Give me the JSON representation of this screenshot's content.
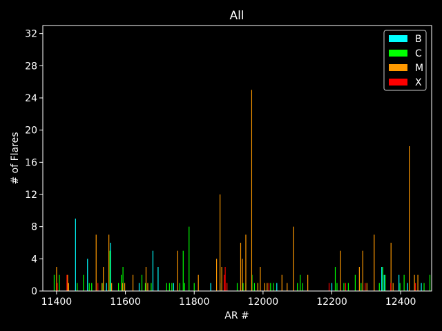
{
  "chart_data": {
    "type": "bar",
    "title": "All",
    "xlabel": "AR #",
    "ylabel": "# of Flares",
    "xlim": [
      11360,
      12490
    ],
    "ylim": [
      0,
      33
    ],
    "xticks": [
      11400,
      11600,
      11800,
      12000,
      12200,
      12400
    ],
    "yticks": [
      0,
      4,
      8,
      12,
      16,
      20,
      24,
      28,
      32
    ],
    "legend_position": "top-right",
    "series": [
      {
        "name": "B",
        "color": "#00ffff",
        "points": [
          [
            11455,
            9
          ],
          [
            11490,
            4
          ],
          [
            11545,
            1
          ],
          [
            11557,
            6
          ],
          [
            11640,
            1
          ],
          [
            11680,
            5
          ],
          [
            11695,
            3
          ],
          [
            11740,
            1
          ],
          [
            11848,
            1
          ],
          [
            11875,
            1
          ],
          [
            12040,
            1
          ],
          [
            12200,
            1
          ],
          [
            12345,
            3
          ],
          [
            12352,
            2
          ],
          [
            12395,
            2
          ],
          [
            12420,
            1
          ],
          [
            12460,
            1
          ]
        ]
      },
      {
        "name": "C",
        "color": "#00ff00",
        "points": [
          [
            11393,
            2
          ],
          [
            11408,
            2
          ],
          [
            11460,
            1
          ],
          [
            11478,
            2
          ],
          [
            11495,
            1
          ],
          [
            11502,
            1
          ],
          [
            11535,
            1
          ],
          [
            11555,
            5
          ],
          [
            11580,
            1
          ],
          [
            11588,
            2
          ],
          [
            11593,
            3
          ],
          [
            11648,
            2
          ],
          [
            11658,
            1
          ],
          [
            11675,
            1
          ],
          [
            11720,
            1
          ],
          [
            11728,
            1
          ],
          [
            11735,
            1
          ],
          [
            11758,
            1
          ],
          [
            11768,
            5
          ],
          [
            11772,
            1
          ],
          [
            11785,
            8
          ],
          [
            11800,
            1
          ],
          [
            11925,
            1
          ],
          [
            11942,
            1
          ],
          [
            11950,
            1
          ],
          [
            11968,
            2
          ],
          [
            11975,
            1
          ],
          [
            11985,
            1
          ],
          [
            12022,
            1
          ],
          [
            12030,
            1
          ],
          [
            12100,
            1
          ],
          [
            12108,
            2
          ],
          [
            12115,
            1
          ],
          [
            12210,
            3
          ],
          [
            12215,
            1
          ],
          [
            12235,
            1
          ],
          [
            12248,
            1
          ],
          [
            12268,
            2
          ],
          [
            12285,
            1
          ],
          [
            12338,
            1
          ],
          [
            12348,
            3
          ],
          [
            12355,
            2
          ],
          [
            12398,
            1
          ],
          [
            12410,
            2
          ],
          [
            12468,
            1
          ],
          [
            12485,
            2
          ]
        ]
      },
      {
        "name": "M",
        "color": "#ff9900",
        "points": [
          [
            11400,
            3
          ],
          [
            11432,
            2
          ],
          [
            11435,
            1
          ],
          [
            11515,
            7
          ],
          [
            11532,
            1
          ],
          [
            11536,
            3
          ],
          [
            11552,
            7
          ],
          [
            11560,
            1
          ],
          [
            11592,
            1
          ],
          [
            11598,
            1
          ],
          [
            11622,
            2
          ],
          [
            11660,
            3
          ],
          [
            11665,
            1
          ],
          [
            11752,
            5
          ],
          [
            11812,
            2
          ],
          [
            11865,
            4
          ],
          [
            11875,
            12
          ],
          [
            11880,
            3
          ],
          [
            11895,
            1
          ],
          [
            11935,
            6
          ],
          [
            11940,
            4
          ],
          [
            11950,
            7
          ],
          [
            11967,
            25
          ],
          [
            11985,
            1
          ],
          [
            11992,
            3
          ],
          [
            12005,
            1
          ],
          [
            12012,
            1
          ],
          [
            12055,
            2
          ],
          [
            12070,
            1
          ],
          [
            12088,
            8
          ],
          [
            12130,
            2
          ],
          [
            12225,
            5
          ],
          [
            12280,
            3
          ],
          [
            12290,
            5
          ],
          [
            12302,
            1
          ],
          [
            12323,
            7
          ],
          [
            12372,
            6
          ],
          [
            12378,
            1
          ],
          [
            12425,
            18
          ],
          [
            12440,
            2
          ],
          [
            12450,
            2
          ]
        ]
      },
      {
        "name": "X",
        "color": "#ff0000",
        "points": [
          [
            11402,
            1
          ],
          [
            11430,
            2
          ],
          [
            11520,
            1
          ],
          [
            11887,
            2
          ],
          [
            11890,
            3
          ],
          [
            11895,
            1
          ],
          [
            12017,
            1
          ],
          [
            12192,
            1
          ],
          [
            12240,
            1
          ],
          [
            12297,
            1
          ],
          [
            12371,
            1
          ],
          [
            12443,
            1
          ]
        ]
      }
    ]
  }
}
